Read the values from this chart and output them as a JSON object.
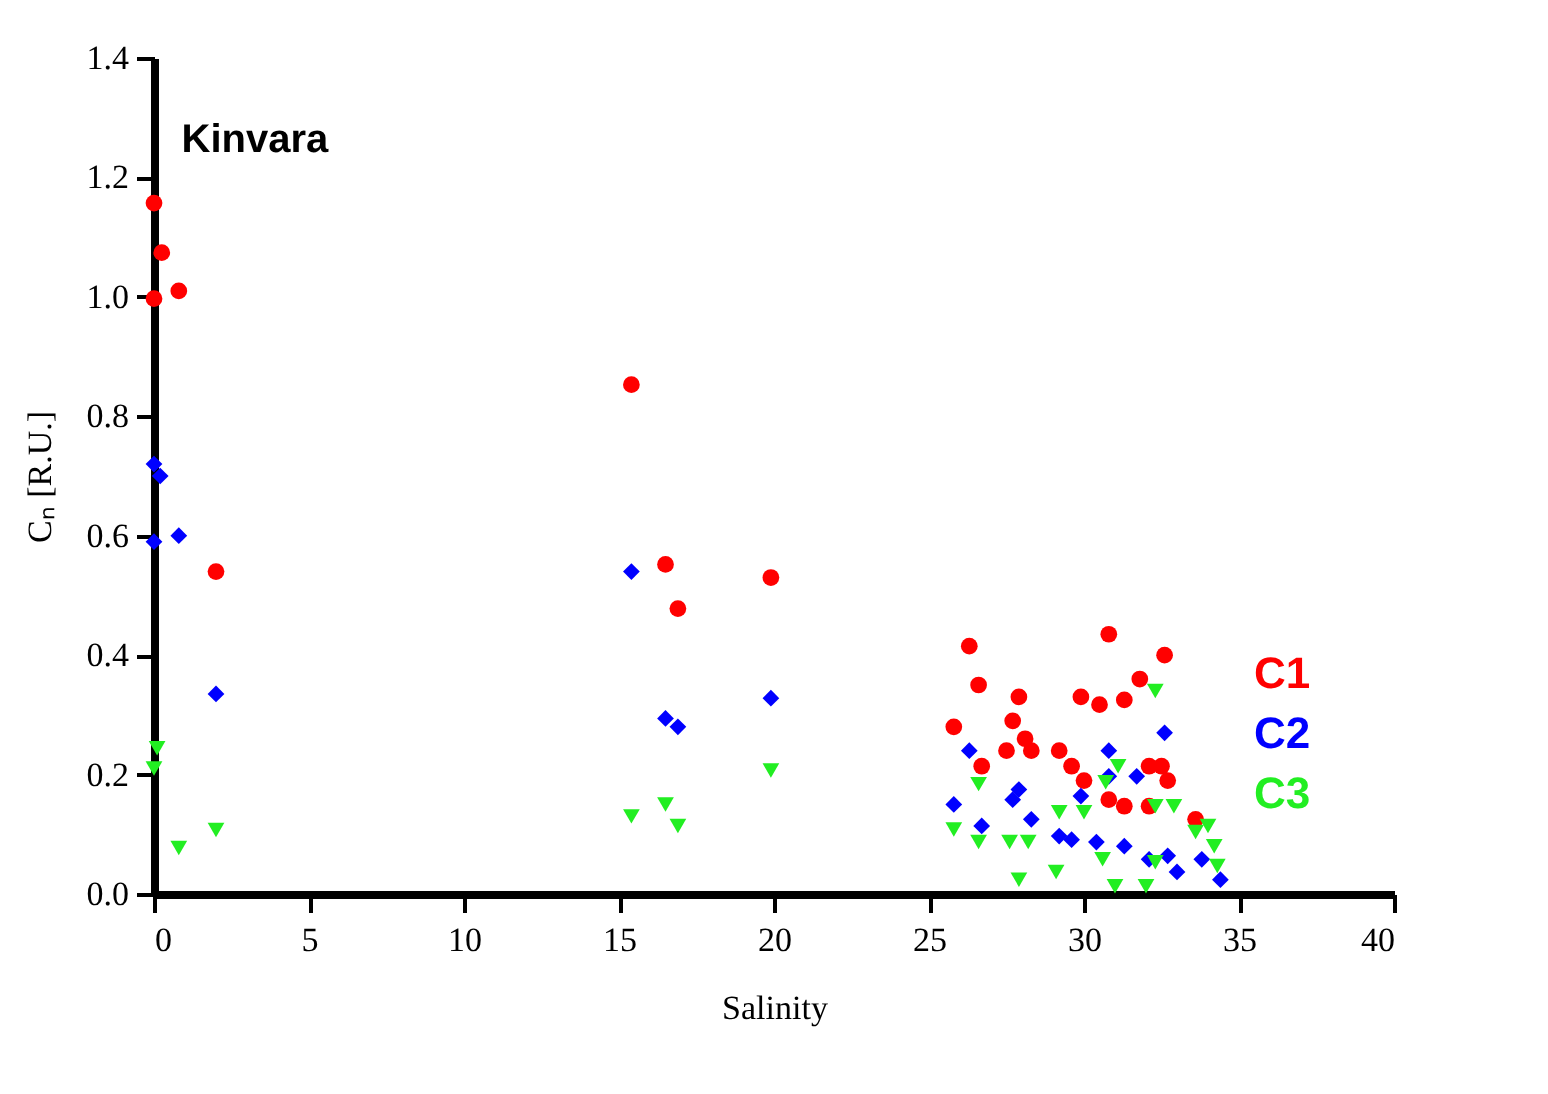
{
  "chart_data": {
    "type": "scatter",
    "title": "Kinvara",
    "xlabel": "Salinity",
    "ylabel": "Cₙ [R.U.]",
    "xlim": [
      0,
      40
    ],
    "xticks": [
      0,
      5,
      10,
      15,
      20,
      25,
      30,
      35,
      40
    ],
    "ylim": [
      0,
      1.4
    ],
    "yticks": [
      {
        "value": 0,
        "label": "0.0"
      },
      {
        "value": 0.2,
        "label": "0.2"
      },
      {
        "value": 0.4,
        "label": "0.4"
      },
      {
        "value": 0.6,
        "label": "0.6"
      },
      {
        "value": 0.8,
        "label": "0.8"
      },
      {
        "value": 1,
        "label": "1.0"
      },
      {
        "value": 1.2,
        "label": "1.2"
      },
      {
        "value": 1.4,
        "label": "1.4"
      }
    ],
    "grid": false,
    "series": [
      {
        "name": "C1",
        "color": "#ff0000",
        "marker": "circle",
        "x": [
          0,
          0.25,
          0.8,
          0,
          2.0,
          15.4,
          16.5,
          16.9,
          19.9,
          26.3,
          26.6,
          25.8,
          27.9,
          27.7,
          26.7,
          27.5,
          28.1,
          28.3,
          29.2,
          29.6,
          30.0,
          29.9,
          30.5,
          31.3,
          30.8,
          31.8,
          32.6,
          30.8,
          31.3,
          32.1,
          32.5,
          32.7,
          33.6,
          32.1
        ],
        "values": [
          1.157,
          1.074,
          1.01,
          0.997,
          0.54,
          0.853,
          0.552,
          0.478,
          0.53,
          0.415,
          0.35,
          0.28,
          0.33,
          0.29,
          0.214,
          0.24,
          0.26,
          0.24,
          0.24,
          0.214,
          0.19,
          0.33,
          0.317,
          0.325,
          0.435,
          0.36,
          0.4,
          0.158,
          0.147,
          0.214,
          0.214,
          0.19,
          0.125,
          0.147
        ]
      },
      {
        "name": "C2",
        "color": "#0000ff",
        "marker": "diamond",
        "x": [
          0,
          0.2,
          0.8,
          0,
          2.0,
          15.4,
          16.5,
          16.9,
          19.9,
          26.3,
          25.8,
          26.7,
          27.7,
          27.9,
          28.3,
          29.2,
          29.9,
          30.4,
          30.8,
          30.8,
          31.3,
          31.7,
          32.1,
          32.6,
          33.0,
          32.7,
          33.8,
          34.4,
          29.6
        ],
        "values": [
          0.72,
          0.7,
          0.6,
          0.59,
          0.335,
          0.54,
          0.294,
          0.28,
          0.328,
          0.24,
          0.15,
          0.114,
          0.158,
          0.175,
          0.125,
          0.097,
          0.164,
          0.087,
          0.24,
          0.197,
          0.08,
          0.197,
          0.058,
          0.27,
          0.037,
          0.064,
          0.058,
          0.024,
          0.091
        ]
      },
      {
        "name": "C3",
        "color": "#22ee22",
        "marker": "triangle",
        "x": [
          0.1,
          0,
          0.8,
          2.0,
          15.4,
          16.5,
          16.9,
          19.9,
          26.6,
          25.8,
          26.6,
          27.6,
          28.2,
          27.9,
          29.1,
          29.2,
          30.0,
          30.7,
          31.1,
          32.3,
          32.3,
          32.9,
          34.0,
          34.2,
          31.0,
          32.0,
          30.6,
          32.3,
          33.6,
          34.3
        ],
        "values": [
          0.244,
          0.21,
          0.077,
          0.107,
          0.13,
          0.15,
          0.114,
          0.207,
          0.184,
          0.108,
          0.087,
          0.087,
          0.087,
          0.024,
          0.037,
          0.137,
          0.137,
          0.187,
          0.214,
          0.34,
          0.147,
          0.147,
          0.114,
          0.08,
          0.013,
          0.013,
          0.058,
          0.053,
          0.104,
          0.047
        ]
      }
    ]
  }
}
